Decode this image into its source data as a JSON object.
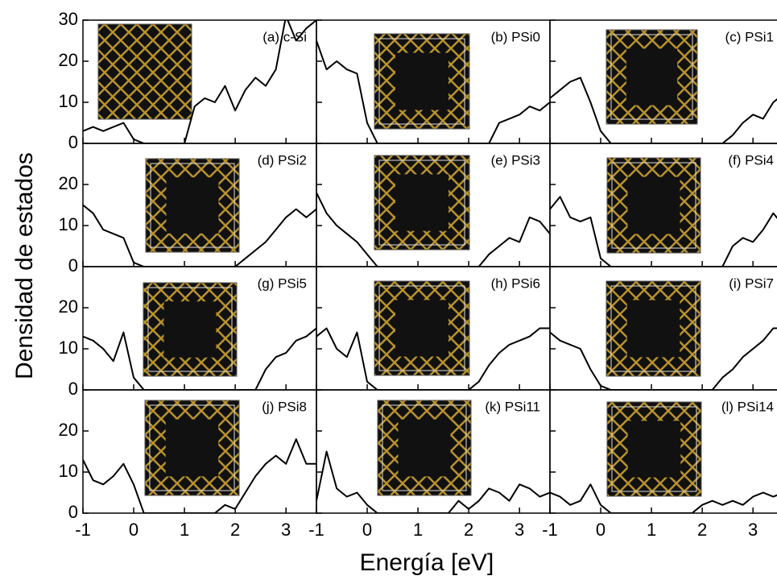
{
  "ylabel": "Densidad de estados",
  "xlabel": "Energía [eV]",
  "chart_data": [
    {
      "type": "line",
      "label": "(a) c-Si",
      "color": "#000000",
      "xlim": [
        -1,
        3.6
      ],
      "ylim": [
        0,
        30
      ],
      "xticks": [
        -1,
        0,
        1,
        2,
        3
      ],
      "yticks": [
        0,
        10,
        20,
        30
      ],
      "x": [
        -1,
        -0.8,
        -0.6,
        -0.4,
        -0.2,
        0,
        0.2,
        0.4,
        0.6,
        0.8,
        1,
        1.2,
        1.4,
        1.6,
        1.8,
        2,
        2.2,
        2.4,
        2.6,
        2.8,
        3,
        3.2,
        3.4,
        3.6
      ],
      "values": [
        3,
        4,
        3,
        4,
        5,
        1,
        0,
        0,
        0,
        0,
        0,
        9,
        11,
        10,
        14,
        8,
        13,
        16,
        14,
        18,
        31,
        25,
        28,
        30
      ]
    },
    {
      "type": "line",
      "label": "(b) PSi0",
      "color": "#000000",
      "xlim": [
        -1,
        3.6
      ],
      "ylim": [
        0,
        30
      ],
      "xticks": [
        -1,
        0,
        1,
        2,
        3
      ],
      "yticks": [
        0,
        10,
        20,
        30
      ],
      "x": [
        -1,
        -0.8,
        -0.6,
        -0.4,
        -0.2,
        0,
        0.2,
        0.4,
        0.6,
        0.8,
        1,
        1.2,
        1.4,
        1.6,
        1.8,
        2,
        2.2,
        2.4,
        2.6,
        2.8,
        3,
        3.2,
        3.4,
        3.6
      ],
      "values": [
        25,
        18,
        20,
        18,
        17,
        5,
        0,
        0,
        0,
        0,
        0,
        0,
        0,
        0,
        0,
        0,
        0,
        0,
        5,
        6,
        7,
        9,
        8,
        10
      ]
    },
    {
      "type": "line",
      "label": "(c) PSi1",
      "color": "#000000",
      "xlim": [
        -1,
        3.6
      ],
      "ylim": [
        0,
        30
      ],
      "xticks": [
        -1,
        0,
        1,
        2,
        3
      ],
      "yticks": [
        0,
        10,
        20,
        30
      ],
      "x": [
        -1,
        -0.8,
        -0.6,
        -0.4,
        -0.2,
        0,
        0.2,
        0.4,
        0.6,
        0.8,
        1,
        1.2,
        1.4,
        1.6,
        1.8,
        2,
        2.2,
        2.4,
        2.6,
        2.8,
        3,
        3.2,
        3.4,
        3.6
      ],
      "values": [
        11,
        13,
        15,
        16,
        10,
        3,
        0,
        0,
        0,
        0,
        0,
        0,
        0,
        0,
        0,
        0,
        0,
        0,
        2,
        5,
        7,
        6,
        10,
        12
      ]
    },
    {
      "type": "line",
      "label": "(d) PSi2",
      "color": "#000000",
      "xlim": [
        -1,
        3.6
      ],
      "ylim": [
        0,
        30
      ],
      "xticks": [
        -1,
        0,
        1,
        2,
        3
      ],
      "yticks": [
        0,
        10,
        20
      ],
      "x": [
        -1,
        -0.8,
        -0.6,
        -0.4,
        -0.2,
        0,
        0.2,
        0.4,
        0.6,
        0.8,
        1,
        1.2,
        1.4,
        1.6,
        1.8,
        2,
        2.2,
        2.4,
        2.6,
        2.8,
        3,
        3.2,
        3.4,
        3.6
      ],
      "values": [
        15,
        13,
        9,
        8,
        7,
        1,
        0,
        0,
        0,
        0,
        0,
        0,
        0,
        0,
        0,
        0,
        2,
        4,
        6,
        9,
        12,
        14,
        12,
        14
      ]
    },
    {
      "type": "line",
      "label": "(e) PSi3",
      "color": "#000000",
      "xlim": [
        -1,
        3.6
      ],
      "ylim": [
        0,
        30
      ],
      "xticks": [
        -1,
        0,
        1,
        2,
        3
      ],
      "yticks": [
        0,
        10,
        20
      ],
      "x": [
        -1,
        -0.8,
        -0.6,
        -0.4,
        -0.2,
        0,
        0.2,
        0.4,
        0.6,
        0.8,
        1,
        1.2,
        1.4,
        1.6,
        1.8,
        2,
        2.2,
        2.4,
        2.6,
        2.8,
        3,
        3.2,
        3.4,
        3.6
      ],
      "values": [
        18,
        13,
        10,
        8,
        6,
        3,
        0,
        0,
        0,
        0,
        0,
        0,
        0,
        0,
        0,
        0,
        0,
        3,
        5,
        7,
        6,
        12,
        11,
        8
      ]
    },
    {
      "type": "line",
      "label": "(f) PSi4",
      "color": "#000000",
      "xlim": [
        -1,
        3.6
      ],
      "ylim": [
        0,
        30
      ],
      "xticks": [
        -1,
        0,
        1,
        2,
        3
      ],
      "yticks": [
        0,
        10,
        20
      ],
      "x": [
        -1,
        -0.8,
        -0.6,
        -0.4,
        -0.2,
        0,
        0.2,
        0.4,
        0.6,
        0.8,
        1,
        1.2,
        1.4,
        1.6,
        1.8,
        2,
        2.2,
        2.4,
        2.6,
        2.8,
        3,
        3.2,
        3.4,
        3.6
      ],
      "values": [
        14,
        17,
        12,
        11,
        12,
        2,
        0,
        0,
        0,
        0,
        0,
        0,
        0,
        0,
        0,
        0,
        0,
        0,
        5,
        7,
        6,
        9,
        13,
        10
      ]
    },
    {
      "type": "line",
      "label": "(g) PSi5",
      "color": "#000000",
      "xlim": [
        -1,
        3.6
      ],
      "ylim": [
        0,
        30
      ],
      "xticks": [
        -1,
        0,
        1,
        2,
        3
      ],
      "yticks": [
        0,
        10,
        20
      ],
      "x": [
        -1,
        -0.8,
        -0.6,
        -0.4,
        -0.2,
        0,
        0.2,
        0.4,
        0.6,
        0.8,
        1,
        1.2,
        1.4,
        1.6,
        1.8,
        2,
        2.2,
        2.4,
        2.6,
        2.8,
        3,
        3.2,
        3.4,
        3.6
      ],
      "values": [
        13,
        12,
        10,
        7,
        14,
        3,
        0,
        0,
        0,
        0,
        0,
        0,
        0,
        0,
        0,
        0,
        0,
        0,
        5,
        8,
        9,
        12,
        13,
        15
      ]
    },
    {
      "type": "line",
      "label": "(h) PSi6",
      "color": "#000000",
      "xlim": [
        -1,
        3.6
      ],
      "ylim": [
        0,
        30
      ],
      "xticks": [
        -1,
        0,
        1,
        2,
        3
      ],
      "yticks": [
        0,
        10,
        20
      ],
      "x": [
        -1,
        -0.8,
        -0.6,
        -0.4,
        -0.2,
        0,
        0.2,
        0.4,
        0.6,
        0.8,
        1,
        1.2,
        1.4,
        1.6,
        1.8,
        2,
        2.2,
        2.4,
        2.6,
        2.8,
        3,
        3.2,
        3.4,
        3.6
      ],
      "values": [
        13,
        15,
        10,
        8,
        14,
        2,
        0,
        0,
        0,
        0,
        0,
        0,
        0,
        0,
        0,
        0,
        2,
        6,
        9,
        11,
        12,
        13,
        15,
        15
      ]
    },
    {
      "type": "line",
      "label": "(i) PSi7",
      "color": "#000000",
      "xlim": [
        -1,
        3.6
      ],
      "ylim": [
        0,
        30
      ],
      "xticks": [
        -1,
        0,
        1,
        2,
        3
      ],
      "yticks": [
        0,
        10,
        20
      ],
      "x": [
        -1,
        -0.8,
        -0.6,
        -0.4,
        -0.2,
        0,
        0.2,
        0.4,
        0.6,
        0.8,
        1,
        1.2,
        1.4,
        1.6,
        1.8,
        2,
        2.2,
        2.4,
        2.6,
        2.8,
        3,
        3.2,
        3.4,
        3.6
      ],
      "values": [
        14,
        12,
        11,
        10,
        5,
        1,
        0,
        0,
        0,
        0,
        0,
        0,
        0,
        0,
        0,
        0,
        0,
        3,
        5,
        8,
        10,
        12,
        15,
        15
      ]
    },
    {
      "type": "line",
      "label": "(j) PSi8",
      "color": "#000000",
      "xlim": [
        -1,
        3.6
      ],
      "ylim": [
        0,
        30
      ],
      "xticks": [
        -1,
        0,
        1,
        2,
        3
      ],
      "yticks": [
        0,
        10,
        20
      ],
      "x": [
        -1,
        -0.8,
        -0.6,
        -0.4,
        -0.2,
        0,
        0.2,
        0.4,
        0.6,
        0.8,
        1,
        1.2,
        1.4,
        1.6,
        1.8,
        2,
        2.2,
        2.4,
        2.6,
        2.8,
        3,
        3.2,
        3.4,
        3.6
      ],
      "values": [
        13,
        8,
        7,
        9,
        12,
        7,
        0,
        0,
        0,
        0,
        0,
        0,
        0,
        0,
        2,
        1,
        5,
        9,
        12,
        14,
        12,
        18,
        12,
        12
      ]
    },
    {
      "type": "line",
      "label": "(k) PSi11",
      "color": "#000000",
      "xlim": [
        -1,
        3.6
      ],
      "ylim": [
        0,
        30
      ],
      "xticks": [
        -1,
        0,
        1,
        2,
        3
      ],
      "yticks": [
        0,
        10,
        20
      ],
      "x": [
        -1,
        -0.8,
        -0.6,
        -0.4,
        -0.2,
        0,
        0.2,
        0.4,
        0.6,
        0.8,
        1,
        1.2,
        1.4,
        1.6,
        1.8,
        2,
        2.2,
        2.4,
        2.6,
        2.8,
        3,
        3.2,
        3.4,
        3.6
      ],
      "values": [
        3,
        15,
        6,
        4,
        5,
        2,
        0,
        0,
        0,
        0,
        0,
        0,
        0,
        0,
        3,
        1,
        3,
        6,
        5,
        3,
        7,
        6,
        4,
        5
      ]
    },
    {
      "type": "line",
      "label": "(l) PSi14",
      "color": "#000000",
      "xlim": [
        -1,
        3.6
      ],
      "ylim": [
        0,
        30
      ],
      "xticks": [
        -1,
        0,
        1,
        2,
        3
      ],
      "yticks": [
        0,
        10,
        20
      ],
      "x": [
        -1,
        -0.8,
        -0.6,
        -0.4,
        -0.2,
        0,
        0.2,
        0.4,
        0.6,
        0.8,
        1,
        1.2,
        1.4,
        1.6,
        1.8,
        2,
        2.2,
        2.4,
        2.6,
        2.8,
        3,
        3.2,
        3.4,
        3.6
      ],
      "values": [
        5,
        4,
        2,
        3,
        7,
        2,
        0,
        0,
        0,
        0,
        0,
        0,
        0,
        0,
        0,
        2,
        3,
        2,
        3,
        2,
        4,
        5,
        4,
        5
      ]
    }
  ]
}
